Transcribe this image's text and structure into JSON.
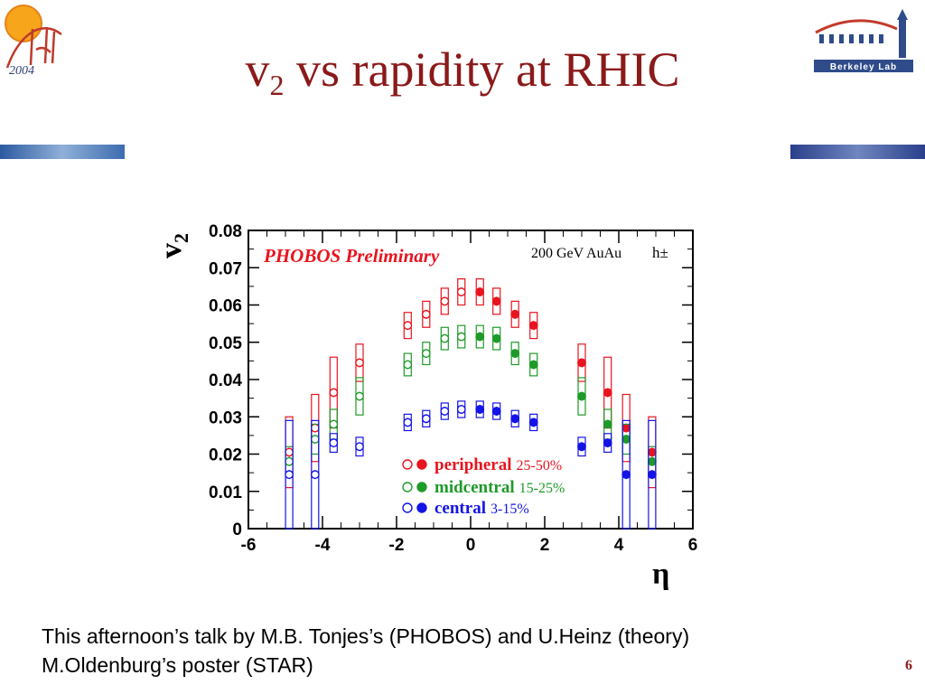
{
  "slide": {
    "title_main": "v",
    "title_sub": "2",
    "title_rest": " vs rapidity at RHIC",
    "footer_line1": "This afternoon’s talk by M.B. Tonjes’s (PHOBOS) and U.Heinz (theory)",
    "footer_line2": "M.Oldenburg’s poster (STAR)",
    "page_number": "6",
    "logo_left_year": "2004",
    "logo_right_text": "Berkeley Lab"
  },
  "colors": {
    "title": "#8b1a1a",
    "peripheral": "#e8141e",
    "midcentral": "#1e9a28",
    "central": "#1414e6",
    "band": "#3a5aa8"
  },
  "chart_data": {
    "type": "scatter",
    "title": "PHOBOS Preliminary",
    "annotation": "200 GeV AuAu",
    "annotation2": "h±",
    "ylabel_main": "v",
    "ylabel_sub": "2",
    "xlabel": "η",
    "xlim": [
      -6,
      6
    ],
    "ylim": [
      0,
      0.08
    ],
    "xticks": [
      "-6",
      "-4",
      "-2",
      "0",
      "2",
      "4",
      "6"
    ],
    "yticks": [
      "0",
      "0.01",
      "0.02",
      "0.03",
      "0.04",
      "0.05",
      "0.06",
      "0.07",
      "0.08"
    ],
    "series": [
      {
        "name": "peripheral",
        "range": "25-50%",
        "color": "#e8141e",
        "open": [
          [
            -4.9,
            0.0205,
            0.0095
          ],
          [
            -4.2,
            0.027,
            0.009
          ],
          [
            -3.7,
            0.0365,
            0.0095
          ],
          [
            -3.0,
            0.0445,
            0.005
          ],
          [
            -1.7,
            0.0545,
            0.0035
          ],
          [
            -1.2,
            0.0575,
            0.0035
          ],
          [
            -0.7,
            0.061,
            0.0035
          ],
          [
            -0.25,
            0.0635,
            0.0035
          ]
        ],
        "closed": [
          [
            0.25,
            0.0635,
            0.0035
          ],
          [
            0.7,
            0.061,
            0.0035
          ],
          [
            1.2,
            0.0575,
            0.0035
          ],
          [
            1.7,
            0.0545,
            0.0035
          ],
          [
            3.0,
            0.0445,
            0.005
          ],
          [
            3.7,
            0.0365,
            0.0095
          ],
          [
            4.2,
            0.027,
            0.009
          ],
          [
            4.9,
            0.0205,
            0.0095
          ]
        ]
      },
      {
        "name": "midcentral",
        "range": "15-25%",
        "color": "#1e9a28",
        "open": [
          [
            -4.9,
            0.018,
            0.004
          ],
          [
            -4.2,
            0.024,
            0.004
          ],
          [
            -3.7,
            0.028,
            0.004
          ],
          [
            -3.0,
            0.0355,
            0.005
          ],
          [
            -1.7,
            0.044,
            0.003
          ],
          [
            -1.2,
            0.047,
            0.003
          ],
          [
            -0.7,
            0.051,
            0.003
          ],
          [
            -0.25,
            0.0515,
            0.003
          ]
        ],
        "closed": [
          [
            0.25,
            0.0515,
            0.003
          ],
          [
            0.7,
            0.051,
            0.003
          ],
          [
            1.2,
            0.047,
            0.003
          ],
          [
            1.7,
            0.044,
            0.003
          ],
          [
            3.0,
            0.0355,
            0.005
          ],
          [
            3.7,
            0.028,
            0.004
          ],
          [
            4.2,
            0.024,
            0.004
          ],
          [
            4.9,
            0.018,
            0.004
          ]
        ]
      },
      {
        "name": "central",
        "range": "3-15%",
        "color": "#1414e6",
        "open": [
          [
            -4.9,
            0.0145,
            0.0145
          ],
          [
            -4.2,
            0.0145,
            0.0145
          ],
          [
            -3.7,
            0.023,
            0.0025
          ],
          [
            -3.0,
            0.022,
            0.0025
          ],
          [
            -1.7,
            0.0285,
            0.0022
          ],
          [
            -1.2,
            0.0295,
            0.0022
          ],
          [
            -0.7,
            0.0315,
            0.0022
          ],
          [
            -0.25,
            0.032,
            0.0022
          ]
        ],
        "closed": [
          [
            0.25,
            0.032,
            0.0022
          ],
          [
            0.7,
            0.0315,
            0.0022
          ],
          [
            1.2,
            0.0295,
            0.0022
          ],
          [
            1.7,
            0.0285,
            0.0022
          ],
          [
            3.0,
            0.022,
            0.0025
          ],
          [
            3.7,
            0.023,
            0.0025
          ],
          [
            4.2,
            0.0145,
            0.0145
          ],
          [
            4.9,
            0.0145,
            0.0145
          ]
        ]
      }
    ]
  }
}
